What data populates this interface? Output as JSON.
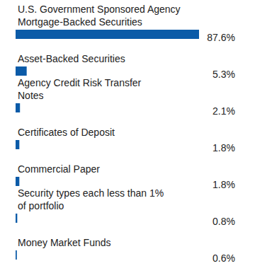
{
  "chart_data": {
    "type": "bar",
    "orientation": "horizontal",
    "categories": [
      "U.S. Government Sponsored Agency Mortgage-Backed Securities",
      "Asset-Backed Securities",
      "Agency Credit Risk Transfer Notes",
      "Certificates of Deposit",
      "Commercial Paper",
      "Security types each less than 1% of portfolio",
      "Money Market Funds"
    ],
    "values": [
      87.6,
      5.3,
      2.1,
      1.8,
      1.8,
      0.8,
      0.6
    ],
    "value_labels": [
      "87.6%",
      "5.3%",
      "2.1%",
      "1.8%",
      "1.8%",
      "0.8%",
      "0.6%"
    ],
    "data_labels": true,
    "tick_labels": false,
    "color": "#0b5ba8"
  }
}
